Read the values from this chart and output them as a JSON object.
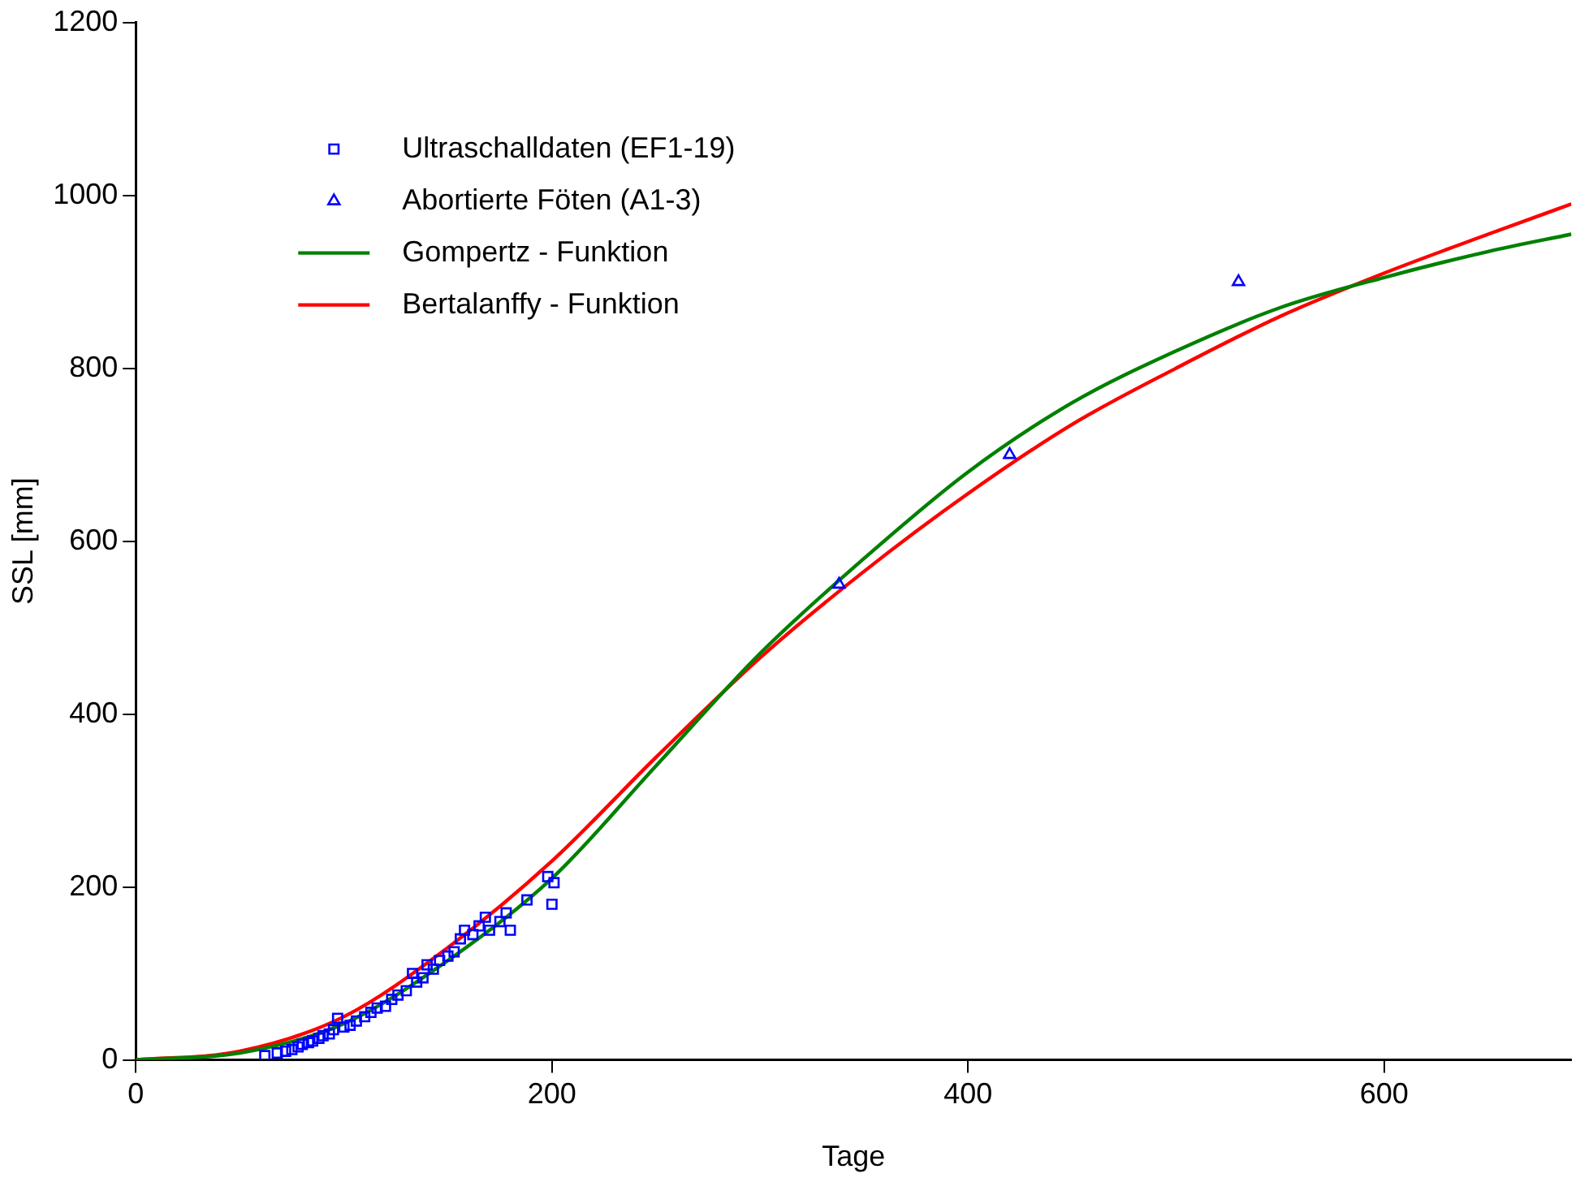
{
  "chart_data": {
    "type": "scatter",
    "xlabel": "Tage",
    "ylabel": "SSL [mm]",
    "xlim": [
      0,
      690
    ],
    "ylim": [
      0,
      1200
    ],
    "xticks": [
      0,
      200,
      400,
      600
    ],
    "yticks": [
      0,
      200,
      400,
      600,
      800,
      1000,
      1200
    ],
    "grid": false,
    "legend": "top left",
    "series": [
      {
        "name": "Ultraschalldaten (EF1-19)",
        "marker": "square",
        "color": "#0000ff",
        "x": [
          62,
          68,
          72,
          75,
          78,
          80,
          83,
          85,
          88,
          90,
          93,
          95,
          97,
          100,
          103,
          106,
          110,
          113,
          116,
          120,
          123,
          126,
          130,
          133,
          135,
          138,
          140,
          143,
          146,
          150,
          153,
          156,
          158,
          162,
          165,
          168,
          170,
          175,
          178,
          180,
          188,
          198,
          200,
          201
        ],
        "values": [
          5,
          8,
          10,
          12,
          15,
          18,
          20,
          22,
          25,
          28,
          30,
          35,
          48,
          38,
          40,
          45,
          50,
          55,
          60,
          62,
          70,
          75,
          80,
          100,
          90,
          95,
          110,
          105,
          115,
          120,
          125,
          140,
          150,
          145,
          155,
          165,
          150,
          160,
          170,
          150,
          185,
          212,
          180,
          205
        ]
      },
      {
        "name": "Abortierte Föten (A1-3)",
        "marker": "triangle",
        "color": "#0000ff",
        "x": [
          338,
          420,
          530
        ],
        "values": [
          550,
          700,
          900
        ]
      },
      {
        "name": "Gompertz - Funktion",
        "type": "line",
        "marker": "none",
        "line_style": "solid",
        "color": "#008000",
        "x": [
          0,
          50,
          100,
          150,
          200,
          250,
          300,
          350,
          400,
          450,
          500,
          550,
          600,
          650,
          690
        ],
        "values": [
          0,
          8,
          42,
          115,
          210,
          340,
          470,
          580,
          680,
          760,
          820,
          870,
          905,
          935,
          955
        ]
      },
      {
        "name": "Bertalanffy - Funktion",
        "type": "line",
        "marker": "none",
        "line_style": "solid",
        "color": "#ff0000",
        "x": [
          0,
          50,
          100,
          150,
          200,
          250,
          300,
          350,
          400,
          450,
          500,
          550,
          600,
          650,
          690
        ],
        "values": [
          0,
          10,
          50,
          130,
          230,
          350,
          465,
          565,
          655,
          735,
          800,
          860,
          910,
          955,
          990
        ]
      }
    ]
  }
}
